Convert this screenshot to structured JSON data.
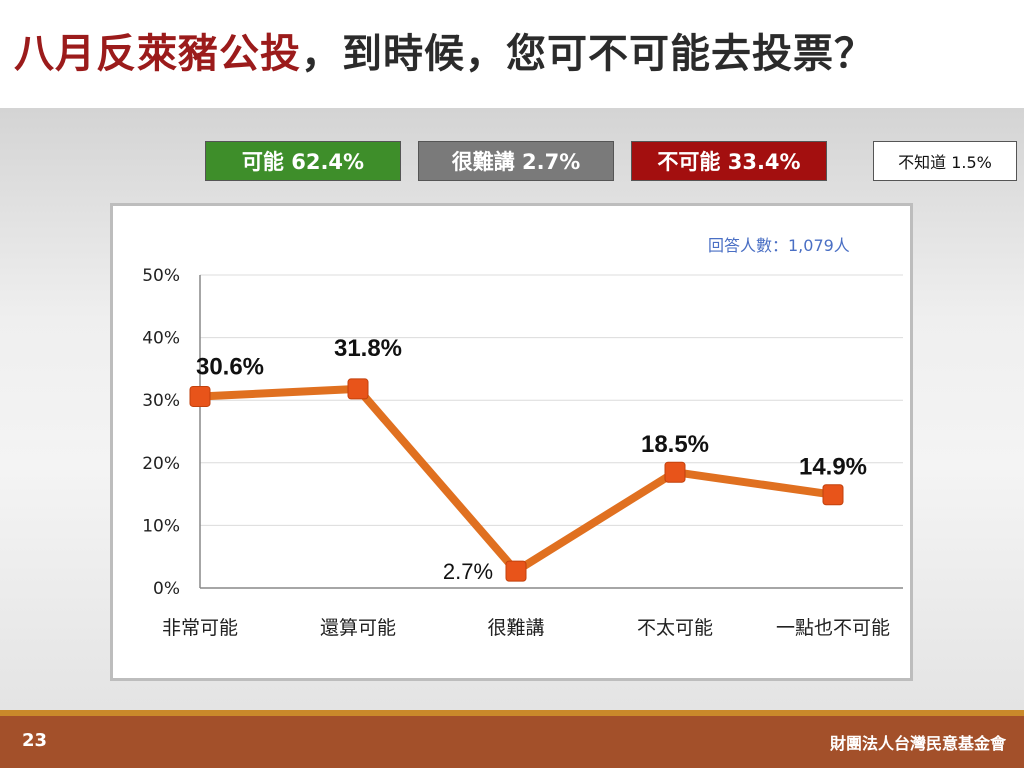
{
  "title": {
    "highlight": "八月反萊豬公投",
    "rest": "，到時候，您可不可能去投票？"
  },
  "summary": {
    "likely": "可能 62.4%",
    "hard_to_say": "很難講 2.7%",
    "unlikely": "不可能 33.4%",
    "unknown": "不知道 1.5%"
  },
  "respondents": "回答人數：1,079人",
  "colors": {
    "line": "#e07020",
    "marker": "#e8541a",
    "likely": "#3e8e2a",
    "hard": "#7a7a7a",
    "unlikely": "#a30f0f",
    "footer": "#a3502a"
  },
  "chart_data": {
    "type": "line",
    "categories": [
      "非常可能",
      "還算可能",
      "很難講",
      "不太可能",
      "一點也不可能"
    ],
    "values": [
      30.6,
      31.8,
      2.7,
      18.5,
      14.9
    ],
    "value_labels": [
      "30.6%",
      "31.8%",
      "2.7%",
      "18.5%",
      "14.9%"
    ],
    "yticks": [
      "0%",
      "10%",
      "20%",
      "30%",
      "40%",
      "50%"
    ],
    "ylim": [
      0,
      50
    ],
    "grid": true,
    "title": "",
    "xlabel": "",
    "ylabel": ""
  },
  "footer": {
    "page": "23",
    "org": "財團法人台灣民意基金會"
  }
}
